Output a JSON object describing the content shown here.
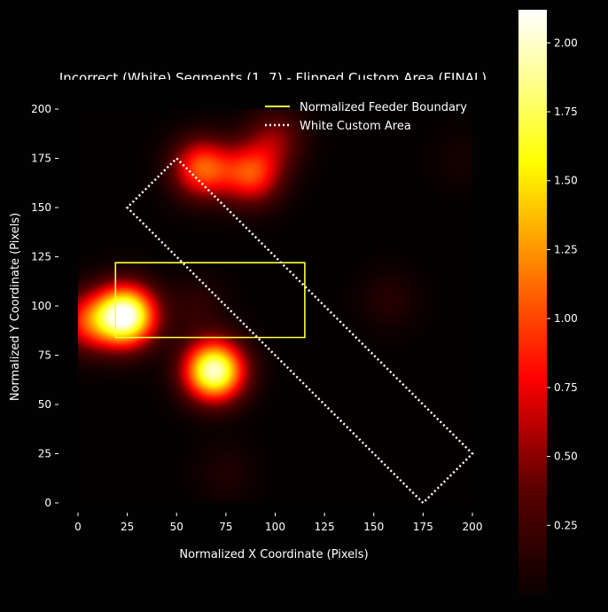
{
  "chart_data": {
    "type": "heatmap",
    "title": "Incorrect (White) Segments (1, 7) - Flipped Custom Area (FINAL)",
    "xlabel": "Normalized X Coordinate (Pixels)",
    "ylabel": "Normalized Y Coordinate (Pixels)",
    "xlim": [
      -10,
      210
    ],
    "ylim": [
      -10,
      210
    ],
    "x_ticks": [
      0,
      25,
      50,
      75,
      100,
      125,
      150,
      175,
      200
    ],
    "y_ticks": [
      0,
      25,
      50,
      75,
      100,
      125,
      150,
      175,
      200
    ],
    "heatmap_extent": {
      "x": [
        0,
        200
      ],
      "y": [
        0,
        200
      ]
    },
    "colormap": "hot",
    "grid": false,
    "colorbar": {
      "min": 0.0,
      "max": 2.12,
      "ticks": [
        0.25,
        0.5,
        0.75,
        1.0,
        1.25,
        1.5,
        1.75,
        2.0
      ]
    },
    "hotspots": [
      {
        "x": 24,
        "y": 95,
        "value": 2.12
      },
      {
        "x": 69,
        "y": 67,
        "value": 2.0
      },
      {
        "x": 63,
        "y": 170,
        "value": 1.05
      },
      {
        "x": 88,
        "y": 167,
        "value": 0.95
      },
      {
        "x": 5,
        "y": 92,
        "value": 0.8
      },
      {
        "x": 100,
        "y": 185,
        "value": 0.45
      },
      {
        "x": 158,
        "y": 103,
        "value": 0.15
      },
      {
        "x": 75,
        "y": 15,
        "value": 0.12
      },
      {
        "x": 60,
        "y": 100,
        "value": 0.18
      },
      {
        "x": 195,
        "y": 175,
        "value": 0.08
      }
    ],
    "series": [
      {
        "name": "Normalized Feeder Boundary",
        "style": "solid",
        "color": "#ffff3a",
        "points": [
          [
            19,
            84
          ],
          [
            115,
            84
          ],
          [
            115,
            122
          ],
          [
            19,
            122
          ],
          [
            19,
            84
          ]
        ]
      },
      {
        "name": "White Custom Area",
        "style": "dotted",
        "color": "#ffffff",
        "points": [
          [
            50,
            175
          ],
          [
            200,
            25
          ],
          [
            175,
            0
          ],
          [
            25,
            150
          ],
          [
            50,
            175
          ]
        ]
      }
    ],
    "legend": "top-right"
  }
}
